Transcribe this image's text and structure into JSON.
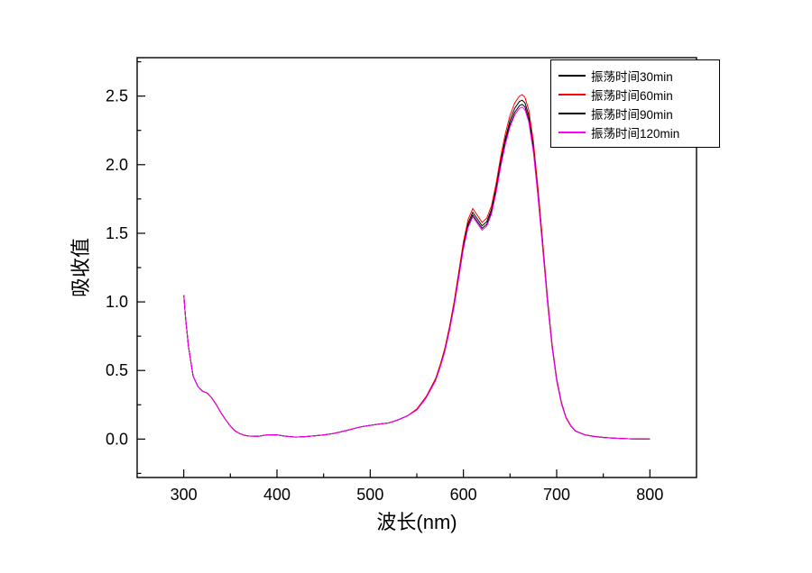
{
  "figure": {
    "background": "#ffffff"
  },
  "chart_data": {
    "type": "line",
    "title": "",
    "xlabel": "波长(nm)",
    "ylabel": "吸收值",
    "xlim": [
      250,
      850
    ],
    "ylim": [
      -0.28,
      2.78
    ],
    "x_ticks": [
      300,
      400,
      500,
      600,
      700,
      800
    ],
    "y_ticks": [
      0.0,
      0.5,
      1.0,
      1.5,
      2.0,
      2.5
    ],
    "x_minor_step": 50,
    "y_minor_step": 0.25,
    "grid": false,
    "legend_position": "top-right",
    "frame_color": "#000000",
    "x": [
      300,
      302,
      305,
      310,
      315,
      320,
      325,
      330,
      335,
      340,
      345,
      350,
      355,
      360,
      365,
      370,
      380,
      390,
      400,
      410,
      420,
      430,
      440,
      450,
      460,
      470,
      480,
      490,
      500,
      510,
      520,
      530,
      540,
      550,
      560,
      570,
      575,
      580,
      585,
      590,
      595,
      600,
      605,
      610,
      615,
      620,
      625,
      630,
      635,
      640,
      645,
      650,
      655,
      660,
      663,
      666,
      670,
      675,
      680,
      685,
      690,
      695,
      700,
      705,
      710,
      715,
      720,
      730,
      740,
      750,
      760,
      780,
      800
    ],
    "series": [
      {
        "name": "振荡时间30min",
        "color": "#000000",
        "values": [
          1.05,
          0.88,
          0.68,
          0.46,
          0.385,
          0.35,
          0.335,
          0.3,
          0.25,
          0.19,
          0.14,
          0.095,
          0.06,
          0.04,
          0.028,
          0.022,
          0.02,
          0.032,
          0.03,
          0.02,
          0.015,
          0.018,
          0.024,
          0.03,
          0.04,
          0.055,
          0.072,
          0.09,
          0.1,
          0.11,
          0.118,
          0.14,
          0.17,
          0.217,
          0.305,
          0.433,
          0.531,
          0.649,
          0.807,
          0.984,
          1.2,
          1.417,
          1.574,
          1.653,
          1.604,
          1.555,
          1.584,
          1.673,
          1.83,
          2.027,
          2.194,
          2.322,
          2.411,
          2.46,
          2.47,
          2.45,
          2.362,
          2.135,
          1.801,
          1.417,
          1.023,
          0.689,
          0.433,
          0.266,
          0.157,
          0.098,
          0.059,
          0.031,
          0.02,
          0.012,
          0.007,
          0.002,
          0.0
        ]
      },
      {
        "name": "振荡时间60min",
        "color": "#ff0000",
        "values": [
          1.05,
          0.88,
          0.68,
          0.46,
          0.385,
          0.35,
          0.335,
          0.3,
          0.25,
          0.19,
          0.14,
          0.095,
          0.06,
          0.04,
          0.028,
          0.022,
          0.02,
          0.032,
          0.03,
          0.02,
          0.015,
          0.018,
          0.024,
          0.03,
          0.04,
          0.055,
          0.072,
          0.09,
          0.1,
          0.11,
          0.118,
          0.14,
          0.17,
          0.22,
          0.31,
          0.44,
          0.54,
          0.66,
          0.82,
          1.0,
          1.22,
          1.44,
          1.6,
          1.68,
          1.63,
          1.58,
          1.61,
          1.7,
          1.86,
          2.06,
          2.23,
          2.36,
          2.45,
          2.5,
          2.51,
          2.49,
          2.4,
          2.17,
          1.83,
          1.44,
          1.04,
          0.7,
          0.44,
          0.27,
          0.16,
          0.1,
          0.06,
          0.032,
          0.02,
          0.012,
          0.007,
          0.002,
          0.0
        ]
      },
      {
        "name": "振荡时间90min",
        "color": "#000000",
        "values": [
          1.05,
          0.88,
          0.68,
          0.46,
          0.385,
          0.35,
          0.335,
          0.3,
          0.25,
          0.19,
          0.14,
          0.095,
          0.06,
          0.04,
          0.028,
          0.022,
          0.02,
          0.032,
          0.03,
          0.02,
          0.015,
          0.018,
          0.024,
          0.03,
          0.04,
          0.055,
          0.072,
          0.09,
          0.1,
          0.11,
          0.118,
          0.14,
          0.17,
          0.214,
          0.301,
          0.428,
          0.525,
          0.642,
          0.797,
          0.972,
          1.186,
          1.4,
          1.555,
          1.633,
          1.584,
          1.536,
          1.565,
          1.652,
          1.808,
          2.002,
          2.168,
          2.294,
          2.381,
          2.43,
          2.44,
          2.42,
          2.333,
          2.109,
          1.779,
          1.4,
          1.011,
          0.68,
          0.428,
          0.262,
          0.156,
          0.097,
          0.058,
          0.031,
          0.019,
          0.012,
          0.007,
          0.002,
          0.0
        ]
      },
      {
        "name": "振荡时间120min",
        "color": "#ff00ff",
        "values": [
          1.05,
          0.88,
          0.68,
          0.46,
          0.385,
          0.35,
          0.335,
          0.3,
          0.25,
          0.19,
          0.14,
          0.095,
          0.06,
          0.04,
          0.028,
          0.022,
          0.02,
          0.032,
          0.03,
          0.02,
          0.015,
          0.018,
          0.024,
          0.03,
          0.04,
          0.055,
          0.072,
          0.09,
          0.1,
          0.11,
          0.118,
          0.14,
          0.17,
          0.212,
          0.299,
          0.424,
          0.521,
          0.636,
          0.79,
          0.964,
          1.176,
          1.388,
          1.542,
          1.62,
          1.571,
          1.523,
          1.552,
          1.639,
          1.793,
          1.986,
          2.15,
          2.275,
          2.362,
          2.41,
          2.42,
          2.4,
          2.314,
          2.092,
          1.764,
          1.388,
          1.003,
          0.675,
          0.424,
          0.26,
          0.154,
          0.096,
          0.058,
          0.031,
          0.019,
          0.011,
          0.007,
          0.002,
          0.0
        ]
      }
    ]
  }
}
